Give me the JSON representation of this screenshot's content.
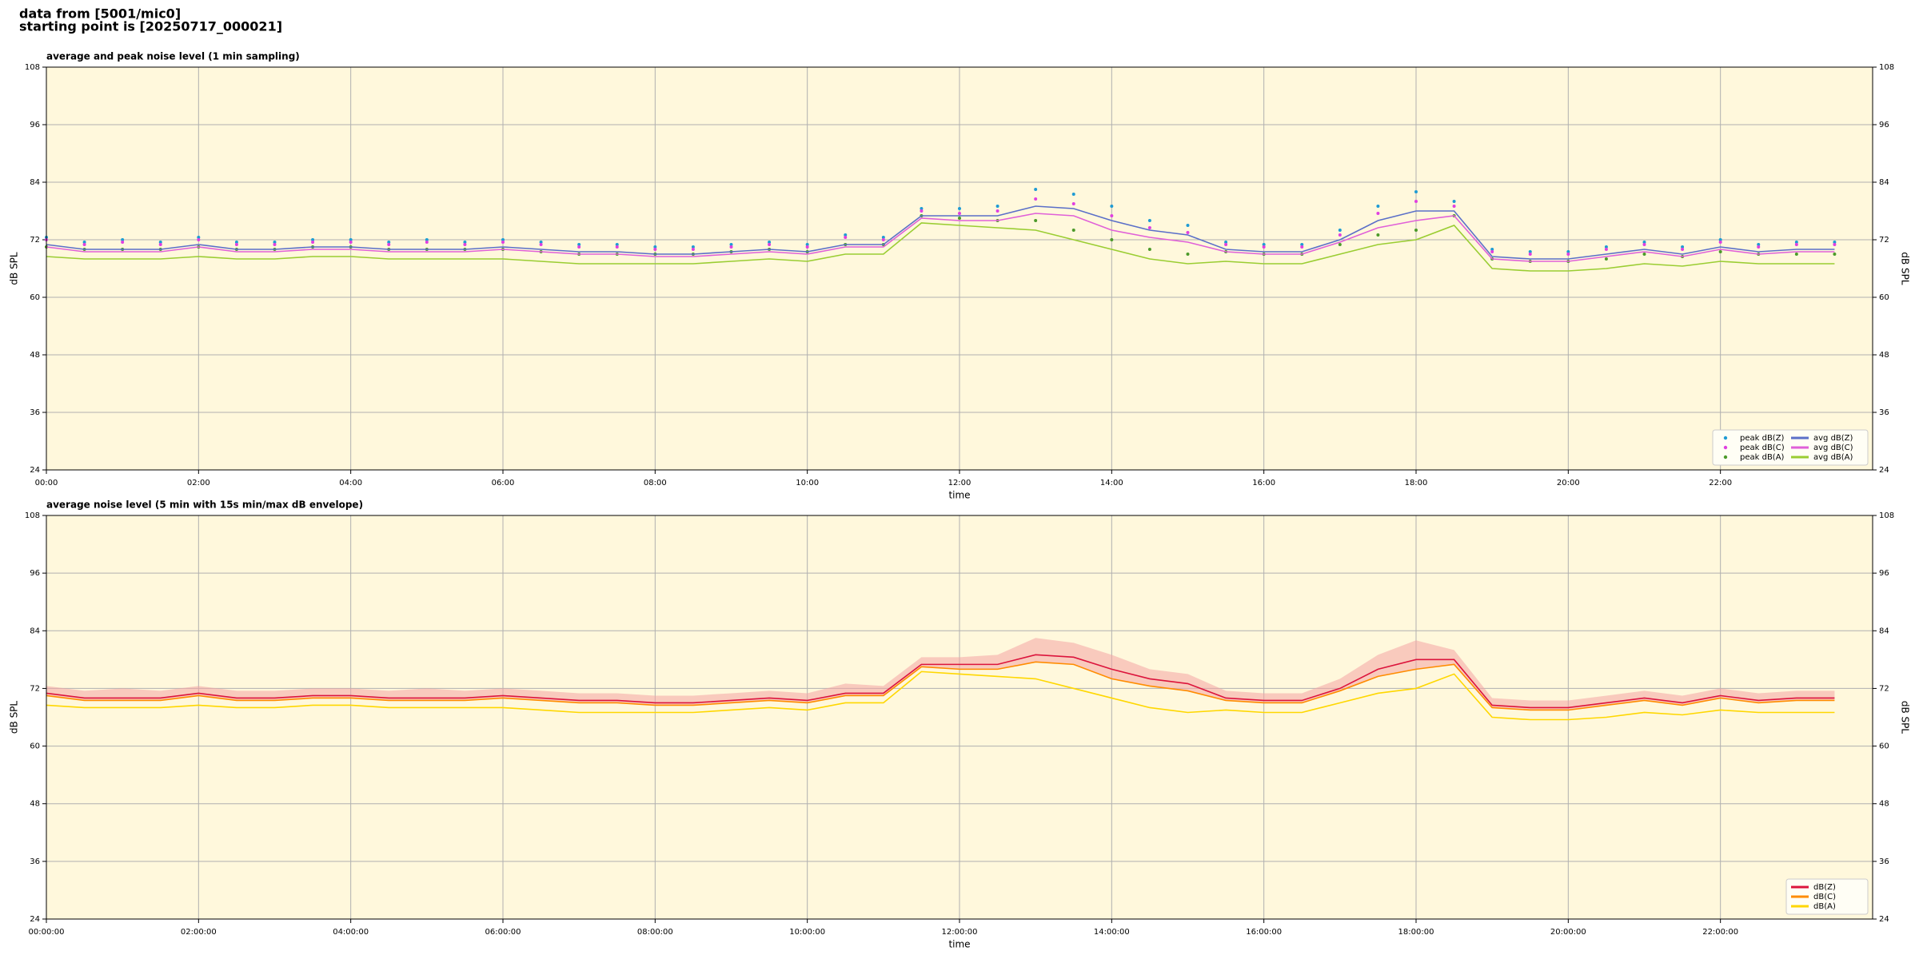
{
  "header": {
    "line1": "data from [5001/mic0]",
    "line2": "starting point is [20250717_000021]"
  },
  "chart_data": [
    {
      "type": "line",
      "title": "average and peak noise level (1 min sampling)",
      "x_label": "time",
      "y_label": "dB SPL",
      "x": [
        0,
        0.5,
        1,
        1.5,
        2,
        2.5,
        3,
        3.5,
        4,
        4.5,
        5,
        5.5,
        6,
        6.5,
        7,
        7.5,
        8,
        8.5,
        9,
        9.5,
        10,
        10.5,
        11,
        11.5,
        12,
        12.5,
        13,
        13.5,
        14,
        14.5,
        15,
        15.5,
        16,
        16.5,
        17,
        17.5,
        18,
        18.5,
        19,
        19.5,
        20,
        20.5,
        21,
        21.5,
        22,
        22.5,
        23,
        23.5
      ],
      "xlim": [
        0,
        24
      ],
      "xticks": [
        {
          "value": 0,
          "label": "00:00"
        },
        {
          "value": 2,
          "label": "02:00"
        },
        {
          "value": 4,
          "label": "04:00"
        },
        {
          "value": 6,
          "label": "06:00"
        },
        {
          "value": 8,
          "label": "08:00"
        },
        {
          "value": 10,
          "label": "10:00"
        },
        {
          "value": 12,
          "label": "12:00"
        },
        {
          "value": 14,
          "label": "14:00"
        },
        {
          "value": 16,
          "label": "16:00"
        },
        {
          "value": 18,
          "label": "18:00"
        },
        {
          "value": 20,
          "label": "20:00"
        },
        {
          "value": 22,
          "label": "22:00"
        }
      ],
      "ylim": [
        24,
        108
      ],
      "yticks": [
        24,
        36,
        48,
        60,
        72,
        84,
        96,
        108
      ],
      "grid": true,
      "legend": "lower right",
      "legend_columns": 2,
      "series": [
        {
          "name": "peak dB(Z)",
          "style": "markers",
          "color": "#1f9bd4",
          "values": [
            72.5,
            71.5,
            72,
            71.5,
            72.5,
            71.5,
            71.5,
            72,
            72,
            71.5,
            72,
            71.5,
            72,
            71.5,
            71,
            71,
            70.5,
            70.5,
            71,
            71.5,
            71,
            73,
            72.5,
            78.5,
            78.5,
            79,
            82.5,
            81.5,
            79,
            76,
            75,
            71.5,
            71,
            71,
            74,
            79,
            82,
            80,
            70,
            69.5,
            69.5,
            70.5,
            71.5,
            70.5,
            72,
            71,
            71.5,
            71.5
          ]
        },
        {
          "name": "peak dB(C)",
          "style": "markers",
          "color": "#e040e0",
          "values": [
            72,
            71,
            71.5,
            71,
            72,
            71,
            71,
            71.5,
            71.5,
            71,
            71.5,
            71,
            71.5,
            71,
            70.5,
            70.5,
            70,
            70,
            70.5,
            71,
            70.5,
            72.5,
            72,
            78,
            77.5,
            78,
            80.5,
            79.5,
            77,
            74.5,
            73.5,
            71,
            70.5,
            70.5,
            73,
            77.5,
            80,
            79,
            69.5,
            69,
            69,
            70,
            71,
            70,
            71.5,
            70.5,
            71,
            71
          ]
        },
        {
          "name": "peak dB(A)",
          "style": "markers",
          "color": "#4c9a2a",
          "values": [
            70.5,
            70,
            70,
            70,
            70.5,
            70,
            70,
            70.5,
            70.5,
            70,
            70,
            70,
            70,
            69.5,
            69,
            69,
            69,
            69,
            69.5,
            70,
            69.5,
            71,
            71,
            77,
            76.5,
            76,
            76,
            74,
            72,
            70,
            69,
            69.5,
            69,
            69,
            71,
            73,
            74,
            77,
            68,
            67.5,
            67.5,
            68,
            69,
            68.5,
            69.5,
            69,
            69,
            69
          ]
        },
        {
          "name": "avg dB(Z)",
          "style": "line",
          "color": "#5a6fc8",
          "values": [
            71,
            70,
            70,
            70,
            71,
            70,
            70,
            70.5,
            70.5,
            70,
            70,
            70,
            70.5,
            70,
            69.5,
            69.5,
            69,
            69,
            69.5,
            70,
            69.5,
            71,
            71,
            77,
            77,
            77,
            79,
            78.5,
            76,
            74,
            73,
            70,
            69.5,
            69.5,
            72,
            76,
            78,
            78,
            68.5,
            68,
            68,
            69,
            70,
            69,
            70.5,
            69.5,
            70,
            70
          ]
        },
        {
          "name": "avg dB(C)",
          "style": "line",
          "color": "#e060d8",
          "values": [
            70.5,
            69.5,
            69.5,
            69.5,
            70.5,
            69.5,
            69.5,
            70,
            70,
            69.5,
            69.5,
            69.5,
            70,
            69.5,
            69,
            69,
            68.5,
            68.5,
            69,
            69.5,
            69,
            70.5,
            70.5,
            76.5,
            76,
            76,
            77.5,
            77,
            74,
            72.5,
            71.5,
            69.5,
            69,
            69,
            71.5,
            74.5,
            76,
            77,
            68,
            67.5,
            67.5,
            68.5,
            69.5,
            68.5,
            70,
            69,
            69.5,
            69.5
          ]
        },
        {
          "name": "avg dB(A)",
          "style": "line",
          "color": "#9acd32",
          "values": [
            68.5,
            68,
            68,
            68,
            68.5,
            68,
            68,
            68.5,
            68.5,
            68,
            68,
            68,
            68,
            67.5,
            67,
            67,
            67,
            67,
            67.5,
            68,
            67.5,
            69,
            69,
            75.5,
            75,
            74.5,
            74,
            72,
            70,
            68,
            67,
            67.5,
            67,
            67,
            69,
            71,
            72,
            75,
            66,
            65.5,
            65.5,
            66,
            67,
            66.5,
            67.5,
            67,
            67,
            67
          ]
        }
      ]
    },
    {
      "type": "line",
      "title": "average noise level (5 min with 15s min/max dB envelope)",
      "x_label": "time",
      "y_label": "dB SPL",
      "x": [
        0,
        0.5,
        1,
        1.5,
        2,
        2.5,
        3,
        3.5,
        4,
        4.5,
        5,
        5.5,
        6,
        6.5,
        7,
        7.5,
        8,
        8.5,
        9,
        9.5,
        10,
        10.5,
        11,
        11.5,
        12,
        12.5,
        13,
        13.5,
        14,
        14.5,
        15,
        15.5,
        16,
        16.5,
        17,
        17.5,
        18,
        18.5,
        19,
        19.5,
        20,
        20.5,
        21,
        21.5,
        22,
        22.5,
        23,
        23.5
      ],
      "xlim": [
        0,
        24
      ],
      "xticks": [
        {
          "value": 0,
          "label": "00:00:00"
        },
        {
          "value": 2,
          "label": "02:00:00"
        },
        {
          "value": 4,
          "label": "04:00:00"
        },
        {
          "value": 6,
          "label": "06:00:00"
        },
        {
          "value": 8,
          "label": "08:00:00"
        },
        {
          "value": 10,
          "label": "10:00:00"
        },
        {
          "value": 12,
          "label": "12:00:00"
        },
        {
          "value": 14,
          "label": "14:00:00"
        },
        {
          "value": 16,
          "label": "16:00:00"
        },
        {
          "value": 18,
          "label": "18:00:00"
        },
        {
          "value": 20,
          "label": "20:00:00"
        },
        {
          "value": 22,
          "label": "22:00:00"
        }
      ],
      "ylim": [
        24,
        108
      ],
      "yticks": [
        24,
        36,
        48,
        60,
        72,
        84,
        96,
        108
      ],
      "grid": true,
      "legend": "lower right",
      "legend_columns": 1,
      "envelope": {
        "color": "#f4a4a4",
        "max": [
          72.5,
          71.5,
          72,
          71.5,
          72.5,
          71.5,
          71.5,
          72,
          72,
          71.5,
          72,
          71.5,
          72,
          71.5,
          71,
          71,
          70.5,
          70.5,
          71,
          71.5,
          71,
          73,
          72.5,
          78.5,
          78.5,
          79,
          82.5,
          81.5,
          79,
          76,
          75,
          71.5,
          71,
          71,
          74,
          79,
          82,
          80,
          70,
          69.5,
          69.5,
          70.5,
          71.5,
          70.5,
          72,
          71,
          71.5,
          71.5
        ],
        "min": [
          70.5,
          69.5,
          69.5,
          69.5,
          70.5,
          69.5,
          69.5,
          70,
          70,
          69.5,
          69.5,
          69.5,
          70,
          69.5,
          69,
          69,
          68.5,
          68.5,
          69,
          69.5,
          69,
          70.5,
          70.5,
          76.5,
          76,
          76,
          77.5,
          77,
          74,
          72.5,
          71.5,
          69.5,
          69,
          69,
          71.5,
          74.5,
          76,
          77,
          68,
          67.5,
          67.5,
          68.5,
          69.5,
          68.5,
          70,
          69,
          69.5,
          69.5
        ]
      },
      "series": [
        {
          "name": "dB(Z)",
          "style": "line",
          "color": "#dc143c",
          "values": [
            71,
            70,
            70,
            70,
            71,
            70,
            70,
            70.5,
            70.5,
            70,
            70,
            70,
            70.5,
            70,
            69.5,
            69.5,
            69,
            69,
            69.5,
            70,
            69.5,
            71,
            71,
            77,
            77,
            77,
            79,
            78.5,
            76,
            74,
            73,
            70,
            69.5,
            69.5,
            72,
            76,
            78,
            78,
            68.5,
            68,
            68,
            69,
            70,
            69,
            70.5,
            69.5,
            70,
            70
          ]
        },
        {
          "name": "dB(C)",
          "style": "line",
          "color": "#ff8c00",
          "values": [
            70.5,
            69.5,
            69.5,
            69.5,
            70.5,
            69.5,
            69.5,
            70,
            70,
            69.5,
            69.5,
            69.5,
            70,
            69.5,
            69,
            69,
            68.5,
            68.5,
            69,
            69.5,
            69,
            70.5,
            70.5,
            76.5,
            76,
            76,
            77.5,
            77,
            74,
            72.5,
            71.5,
            69.5,
            69,
            69,
            71.5,
            74.5,
            76,
            77,
            68,
            67.5,
            67.5,
            68.5,
            69.5,
            68.5,
            70,
            69,
            69.5,
            69.5
          ]
        },
        {
          "name": "dB(A)",
          "style": "line",
          "color": "#ffd700",
          "values": [
            68.5,
            68,
            68,
            68,
            68.5,
            68,
            68,
            68.5,
            68.5,
            68,
            68,
            68,
            68,
            67.5,
            67,
            67,
            67,
            67,
            67.5,
            68,
            67.5,
            69,
            69,
            75.5,
            75,
            74.5,
            74,
            72,
            70,
            68,
            67,
            67.5,
            67,
            67,
            69,
            71,
            72,
            75,
            66,
            65.5,
            65.5,
            66,
            67,
            66.5,
            67.5,
            67,
            67,
            67
          ]
        }
      ]
    }
  ]
}
